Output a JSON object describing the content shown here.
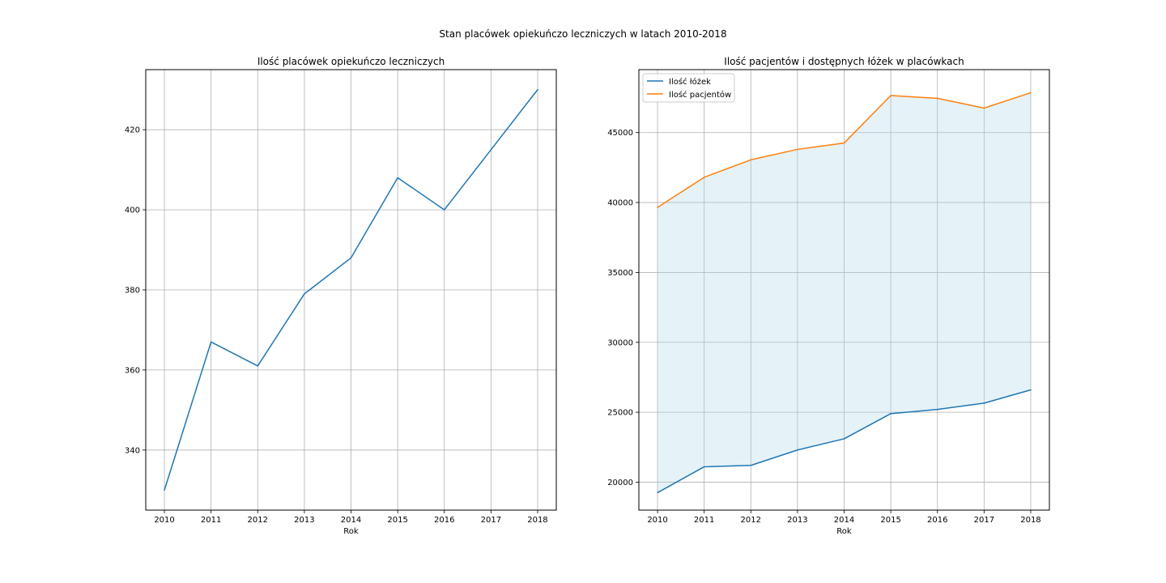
{
  "figure": {
    "suptitle": "Stan placówek opiekuńczo leczniczych w latach 2010-2018"
  },
  "chart_data": [
    {
      "type": "line",
      "title": "Ilość placówek opiekuńczo leczniczych",
      "xlabel": "Rok",
      "ylabel": "",
      "grid": true,
      "x": [
        2010,
        2011,
        2012,
        2013,
        2014,
        2015,
        2016,
        2017,
        2018
      ],
      "xlim": [
        2009.6,
        2018.4
      ],
      "ylim": [
        325,
        435
      ],
      "yticks": [
        340,
        360,
        380,
        400,
        420
      ],
      "series": [
        {
          "color": "#1f77b4",
          "values": [
            330,
            367,
            361,
            379,
            388,
            408,
            400,
            415,
            430
          ]
        }
      ]
    },
    {
      "type": "area",
      "title": "Ilość pacjentów i dostępnych łóżek w placówkach",
      "xlabel": "Rok",
      "ylabel": "",
      "grid": true,
      "legend_position": "top-left",
      "x": [
        2010,
        2011,
        2012,
        2013,
        2014,
        2015,
        2016,
        2017,
        2018
      ],
      "xlim": [
        2009.6,
        2018.4
      ],
      "ylim": [
        18000,
        49500
      ],
      "yticks": [
        20000,
        25000,
        30000,
        35000,
        40000,
        45000
      ],
      "fill_between": {
        "color": "#add8e6",
        "opacity": 0.32
      },
      "series": [
        {
          "name": "Ilość łóżek",
          "color": "#1f77b4",
          "values": [
            19250,
            21100,
            21200,
            22300,
            23100,
            24900,
            25200,
            25650,
            26600
          ]
        },
        {
          "name": "Ilość pacjentów",
          "color": "#ff7f0e",
          "values": [
            39650,
            41800,
            43050,
            43800,
            44250,
            47650,
            47450,
            46750,
            47850
          ]
        }
      ]
    }
  ]
}
